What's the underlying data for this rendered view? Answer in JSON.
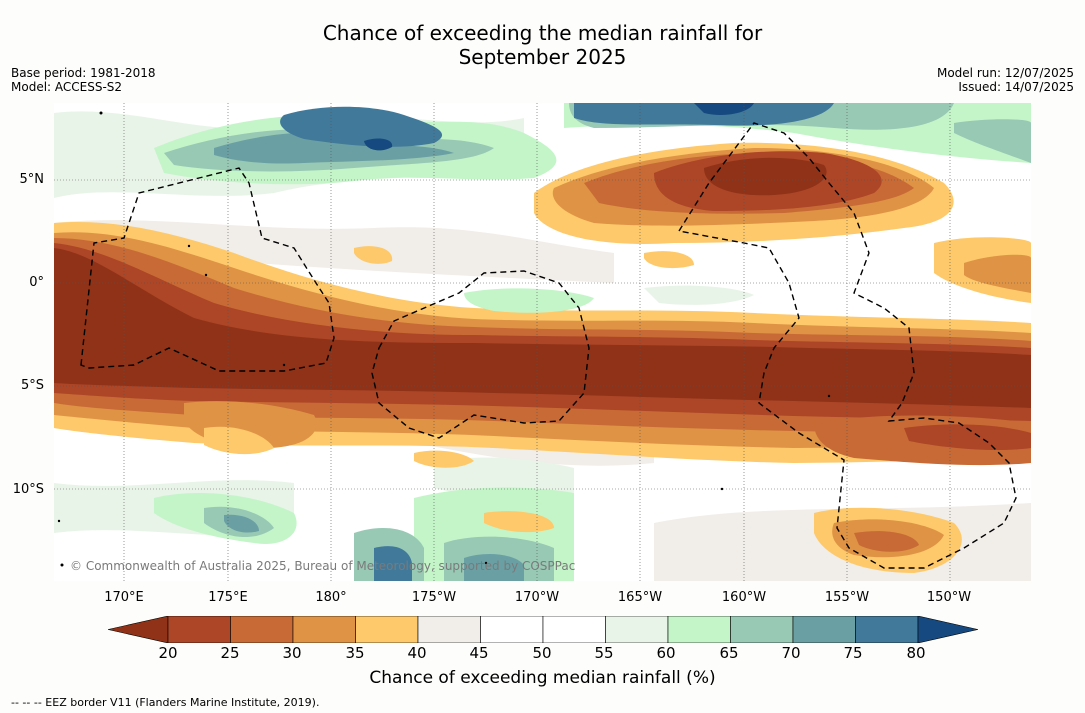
{
  "title_line1": "Chance of exceeding the median rainfall for",
  "title_line2": "September 2025",
  "meta_left": [
    "Base period: 1981-2018",
    "Model: ACCESS-S2"
  ],
  "meta_right": [
    "Model run: 12/07/2025",
    "Issued: 14/07/2025"
  ],
  "lat_labels": [
    "5°N",
    "0°",
    "5°S",
    "10°S"
  ],
  "lon_labels": [
    "170°E",
    "175°E",
    "180°",
    "175°W",
    "170°W",
    "165°W",
    "160°W",
    "155°W",
    "150°W"
  ],
  "copyright": "© Commonwealth of Australia 2025, Bureau of Meteorology, supported by COSPPac",
  "colorbar": {
    "ticks": [
      "20",
      "25",
      "30",
      "35",
      "40",
      "45",
      "50",
      "55",
      "60",
      "65",
      "70",
      "75",
      "80"
    ],
    "colors": [
      "#8f3218",
      "#ad4527",
      "#c86a35",
      "#df9345",
      "#fdc96a",
      "#f1ede8",
      "#ffffff",
      "#ffffff",
      "#e9f4e8",
      "#c4f5c8",
      "#98c9b4",
      "#6aa0a4",
      "#41799a",
      "#16497f"
    ],
    "label": "Chance of exceeding median rainfall (%)"
  },
  "legend_note": "--  --  -- EEZ border V11 (Flanders Marine Institute, 2019)."
}
